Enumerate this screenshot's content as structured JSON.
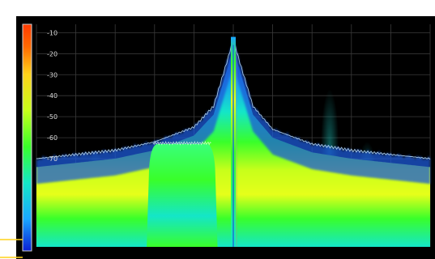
{
  "chart_data": {
    "type": "heatmap",
    "description_kind": "spectrum persistence display",
    "title": "",
    "xlabel": "",
    "ylabel": "",
    "y_ticks": [
      -10,
      -20,
      -30,
      -40,
      -50,
      -60,
      -70
    ],
    "ylim": [
      -112,
      -6
    ],
    "x_divisions": 10,
    "grid": true,
    "colorscale": [
      "#0a1fd6",
      "#1aa7ff",
      "#14e6c8",
      "#39ff2a",
      "#c8ff1a",
      "#ffd21a",
      "#ff6a00",
      "#ff3a00"
    ],
    "noise_floor_trace": [
      {
        "x": 0.0,
        "y": -70
      },
      {
        "x": 0.1,
        "y": -68
      },
      {
        "x": 0.2,
        "y": -66
      },
      {
        "x": 0.3,
        "y": -62
      },
      {
        "x": 0.4,
        "y": -55
      },
      {
        "x": 0.45,
        "y": -45
      },
      {
        "x": 0.49,
        "y": -20
      },
      {
        "x": 0.5,
        "y": -12
      },
      {
        "x": 0.51,
        "y": -20
      },
      {
        "x": 0.55,
        "y": -45
      },
      {
        "x": 0.6,
        "y": -56
      },
      {
        "x": 0.7,
        "y": -63
      },
      {
        "x": 0.8,
        "y": -66
      },
      {
        "x": 0.9,
        "y": -68
      },
      {
        "x": 1.0,
        "y": -70
      }
    ],
    "signals": [
      {
        "kind": "carrier",
        "center": 0.5,
        "peak_db": -12
      },
      {
        "kind": "wideband",
        "start": 0.28,
        "end": 0.46,
        "level_db": -63
      },
      {
        "kind": "ghost",
        "center": 0.745,
        "peak_db": -37
      },
      {
        "kind": "ghost",
        "center": 0.84,
        "peak_db": -62
      },
      {
        "kind": "ghost",
        "center": 0.15,
        "peak_db": -66
      }
    ]
  }
}
